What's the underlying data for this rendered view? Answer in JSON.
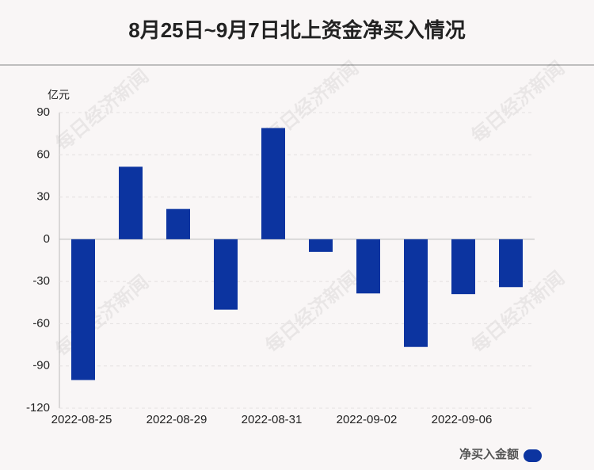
{
  "chart_data": {
    "type": "bar",
    "title": "8月25日~9月7日北上资金净买入情况",
    "y_unit": "亿元",
    "watermark": "每日经济新闻",
    "categories": [
      "2022-08-25",
      null,
      "2022-08-29",
      null,
      "2022-08-31",
      null,
      "2022-09-02",
      null,
      "2022-09-06",
      null
    ],
    "series": [
      {
        "name": "净买入金额",
        "color": "#0c34a0",
        "values": [
          -100,
          51.5,
          21.5,
          -50,
          79,
          -9,
          -38.5,
          -76.5,
          -39,
          -34
        ]
      }
    ],
    "ylim": [
      -120,
      90
    ],
    "yticks": [
      -120,
      -90,
      -60,
      -30,
      0,
      30,
      60,
      90
    ],
    "grid": true
  }
}
